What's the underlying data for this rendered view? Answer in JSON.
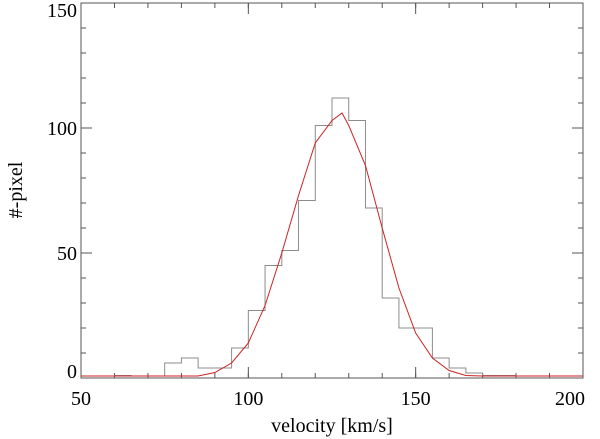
{
  "chart_data": {
    "type": "line",
    "xlabel": "velocity [km/s]",
    "ylabel": "#-pixel",
    "xlim": [
      50,
      200
    ],
    "ylim": [
      0,
      150
    ],
    "xticks": [
      50,
      100,
      150,
      200
    ],
    "yticks": [
      0,
      50,
      100,
      150
    ],
    "x_minor_step": 10,
    "y_minor_step": 10,
    "grid": false,
    "series": [
      {
        "kind": "histogram-step",
        "color": "#888888",
        "bin_width": 5,
        "bins": [
          {
            "x": 50,
            "y": 0
          },
          {
            "x": 55,
            "y": 0
          },
          {
            "x": 60,
            "y": 1
          },
          {
            "x": 65,
            "y": 0
          },
          {
            "x": 70,
            "y": 0
          },
          {
            "x": 75,
            "y": 6
          },
          {
            "x": 80,
            "y": 8
          },
          {
            "x": 85,
            "y": 4
          },
          {
            "x": 90,
            "y": 4
          },
          {
            "x": 95,
            "y": 12
          },
          {
            "x": 100,
            "y": 27
          },
          {
            "x": 105,
            "y": 45
          },
          {
            "x": 110,
            "y": 51
          },
          {
            "x": 115,
            "y": 71
          },
          {
            "x": 120,
            "y": 101
          },
          {
            "x": 125,
            "y": 112
          },
          {
            "x": 130,
            "y": 103
          },
          {
            "x": 135,
            "y": 68
          },
          {
            "x": 140,
            "y": 32
          },
          {
            "x": 145,
            "y": 20
          },
          {
            "x": 150,
            "y": 20
          },
          {
            "x": 155,
            "y": 8
          },
          {
            "x": 160,
            "y": 4
          },
          {
            "x": 165,
            "y": 2
          },
          {
            "x": 170,
            "y": 1
          },
          {
            "x": 175,
            "y": 1
          },
          {
            "x": 180,
            "y": 0
          },
          {
            "x": 185,
            "y": 0
          },
          {
            "x": 190,
            "y": 0
          },
          {
            "x": 195,
            "y": 0
          }
        ]
      },
      {
        "kind": "fit-curve",
        "color": "#cc2222",
        "x": [
          50,
          60,
          70,
          80,
          85,
          90,
          95,
          100,
          105,
          110,
          115,
          120,
          125,
          128,
          130,
          135,
          140,
          145,
          150,
          155,
          160,
          165,
          170,
          180,
          190,
          200
        ],
        "y": [
          0,
          0,
          0,
          0.3,
          0.8,
          2.2,
          6,
          14,
          29,
          50,
          73,
          94,
          103,
          106,
          101,
          85,
          60,
          36,
          18,
          8,
          3,
          1,
          0.4,
          0.1,
          0,
          0
        ]
      }
    ]
  }
}
